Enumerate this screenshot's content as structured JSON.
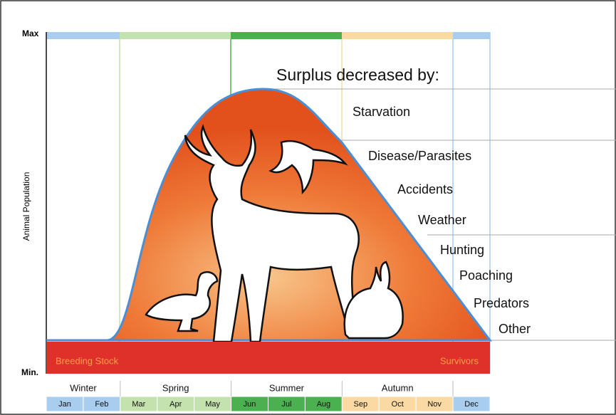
{
  "y_axis": {
    "title": "Animal Population",
    "max_label": "Max",
    "min_label": "Min."
  },
  "heading": "Surplus decreased by:",
  "factors": [
    "Starvation",
    "Disease/Parasites",
    "Accidents",
    "Weather",
    "Hunting",
    "Poaching",
    "Predators",
    "Other"
  ],
  "bands": {
    "left": "Breeding Stock",
    "right": "Survivors"
  },
  "seasons": [
    "Winter",
    "Spring",
    "Summer",
    "Autumn"
  ],
  "months": [
    "Jan",
    "Feb",
    "Mar",
    "Apr",
    "May",
    "Jun",
    "Jul",
    "Aug",
    "Sep",
    "Oct",
    "Nov",
    "Dec"
  ]
}
